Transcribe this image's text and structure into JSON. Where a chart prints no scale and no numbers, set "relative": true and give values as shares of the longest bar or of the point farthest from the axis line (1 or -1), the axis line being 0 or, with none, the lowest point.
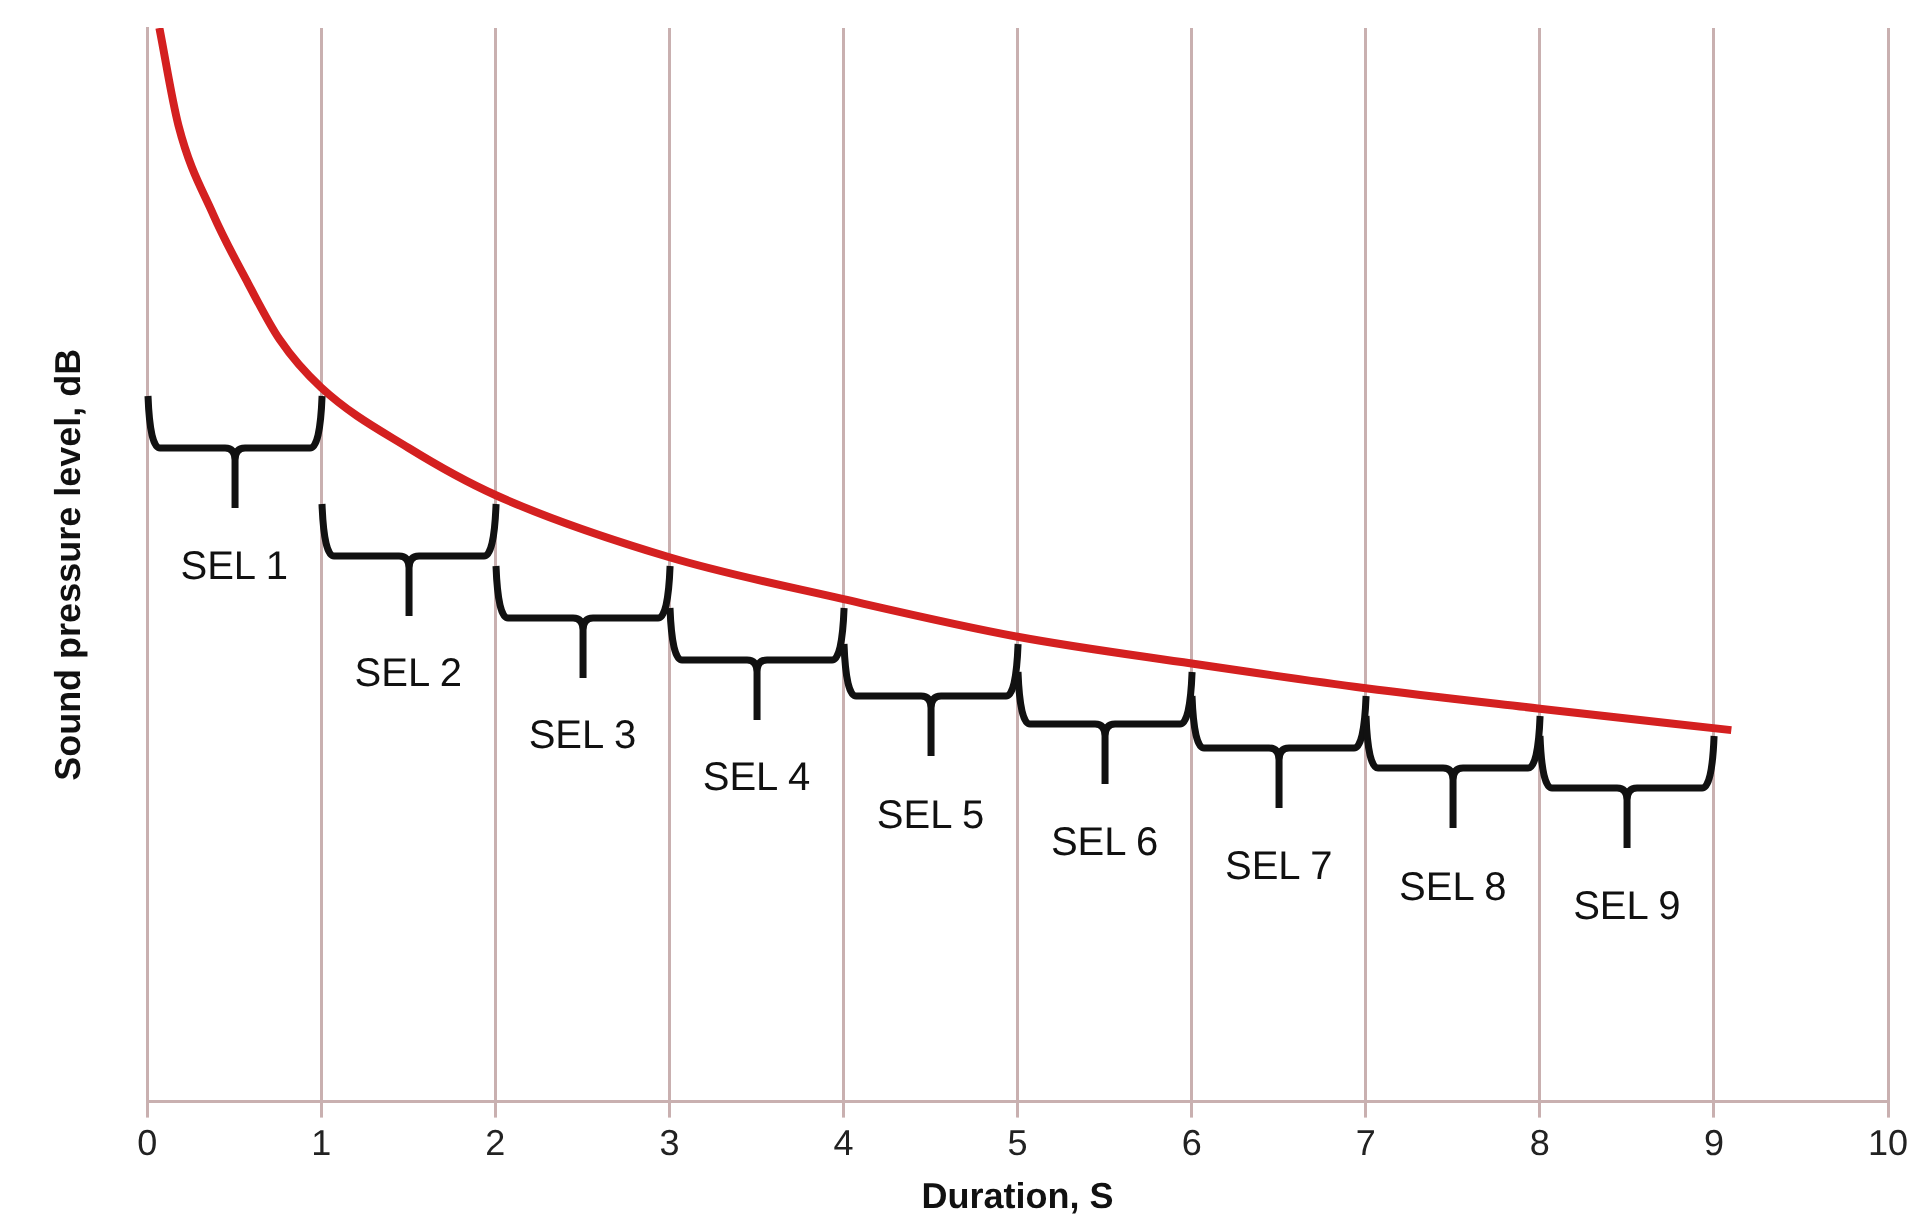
{
  "chart_data": {
    "type": "line",
    "xlabel": "Duration, S",
    "ylabel": "Sound pressure level, dB",
    "relative": true,
    "xlim": [
      0,
      10
    ],
    "xticks": [
      0,
      1,
      2,
      3,
      4,
      5,
      6,
      7,
      8,
      9,
      10
    ],
    "grid": "x",
    "legend": false,
    "marker": "none",
    "series": [
      {
        "color": "#d42020",
        "x": [
          0.07,
          0.18,
          0.38,
          0.58,
          0.76,
          1,
          1.5,
          2,
          3,
          4,
          5,
          6,
          7,
          8,
          9.1
        ],
        "values": [
          1,
          0.909,
          0.826,
          0.762,
          0.71,
          0.665,
          0.609,
          0.565,
          0.507,
          0.468,
          0.433,
          0.408,
          0.385,
          0.366,
          0.346
        ]
      }
    ],
    "annotations": [
      "SEL 1",
      "SEL 2",
      "SEL 3",
      "SEL 4",
      "SEL 5",
      "SEL 6",
      "SEL 7",
      "SEL 8",
      "SEL 9"
    ]
  }
}
